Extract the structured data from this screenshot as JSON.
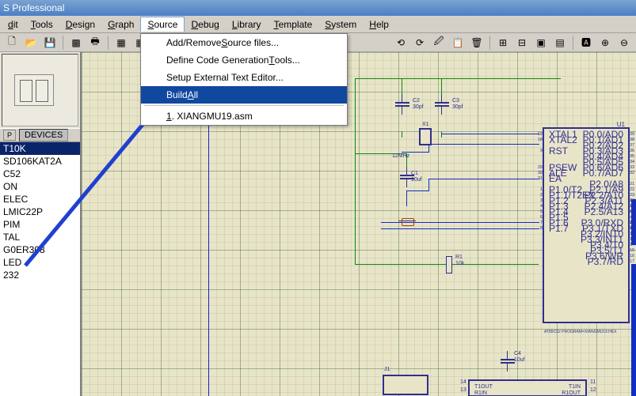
{
  "title": "S Professional",
  "menubar": [
    "dit",
    "Tools",
    "Design",
    "Graph",
    "Source",
    "Debug",
    "Library",
    "Template",
    "System",
    "Help"
  ],
  "menubar_open_index": 4,
  "dropdown": {
    "items": [
      {
        "label": "Add/Remove Source files...",
        "icon": "page"
      },
      {
        "label": "Define Code Generation Tools...",
        "icon": "tools"
      },
      {
        "label": "Setup External Text Editor..."
      },
      {
        "label": "Build All",
        "selected": true
      },
      {
        "sep": true
      },
      {
        "label": "1. XIANGMU19.asm"
      }
    ]
  },
  "devices": {
    "header": "DEVICES",
    "p_label": "P",
    "items": [
      "T10K",
      "SD106KAT2A",
      "C52",
      "ON",
      "ELEC",
      "LMIC22P",
      "PIM",
      "TAL",
      "G0ER308",
      "LED",
      "232"
    ],
    "selected_index": 0
  },
  "schematic": {
    "u1": {
      "ref": "U1",
      "left_pins": [
        "XTAL1",
        "XTAL2",
        "",
        "RST",
        "",
        "",
        "PSEW",
        "ALE",
        "EA",
        "",
        "P1.0/T2",
        "P1.1/T2EX",
        "P1.2",
        "P1.3",
        "P1.4",
        "P1.5",
        "P1.6",
        "P1.7"
      ],
      "left_nums": [
        "19",
        "18",
        "",
        "9",
        "",
        "",
        "29",
        "30",
        "31",
        "",
        "1",
        "2",
        "3",
        "4",
        "5",
        "6",
        "7",
        "8"
      ],
      "right_pins": [
        "P0.0/AD0",
        "P0.1/AD1",
        "P0.2/AD2",
        "P0.3/AD3",
        "P0.4/AD4",
        "P0.5/AD5",
        "P0.6/AD6",
        "P0.7/AD7",
        "",
        "P2.0/A8",
        "P2.1/A9",
        "P2.2/A10",
        "P2.3/A11",
        "P2.4/A12",
        "P2.5/A13",
        "",
        "P3.0/RXD",
        "P3.1/TXD",
        "P3.2/INT0",
        "P3.3/INT1",
        "P3.4/T0",
        "P3.5/T1",
        "P3.6/WR",
        "P3.7/RD"
      ],
      "right_nums": [
        "39",
        "38",
        "37",
        "36",
        "35",
        "34",
        "33",
        "32",
        "",
        "21",
        "22",
        "23",
        "24",
        "25",
        "26",
        "",
        "10",
        "11",
        "12",
        "13",
        "14",
        "15",
        "16",
        "17"
      ],
      "right_bus": [
        "P2.0",
        "P2.1",
        "P2.2",
        "P2.3",
        "P2.4",
        "P2.5"
      ],
      "footer": "AT89C52  PROGRAM=XIANGMU19.HEX"
    },
    "caps": {
      "c2": {
        "ref": "C2",
        "val": "30pf"
      },
      "c3": {
        "ref": "C3",
        "val": "30pf"
      },
      "c1": {
        "ref": "C1",
        "val": "10uf"
      },
      "c4": {
        "ref": "C4",
        "val": "10uf"
      }
    },
    "xtal": {
      "ref": "X1",
      "val": "12MHz"
    },
    "r1": {
      "ref": "R1",
      "val": "10k"
    },
    "j1": {
      "ref": "J1"
    },
    "u3": {
      "t1out": "T1OUT",
      "r1in": "R1IN",
      "t1in": "T1IN",
      "r1out": "R1OUT",
      "n14": "14",
      "n13": "13",
      "n11": "11",
      "n12": "12"
    }
  }
}
